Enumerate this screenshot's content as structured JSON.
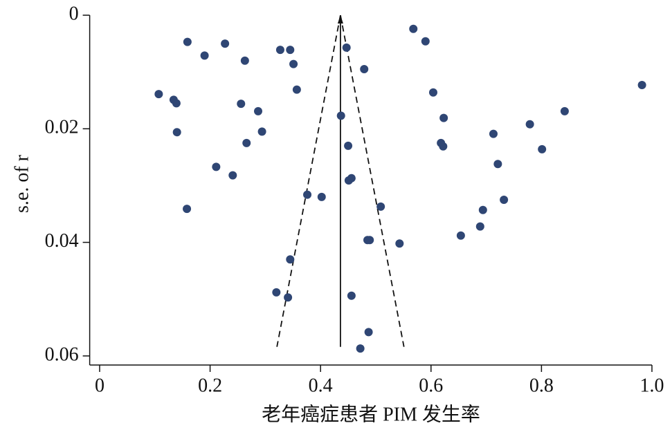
{
  "chart_data": {
    "type": "scatter",
    "xlabel": "老年癌症患者 PIM 发生率",
    "ylabel": "s.e. of r",
    "color": "#2f4674",
    "x": [
      0.159,
      0.19,
      0.227,
      0.263,
      0.327,
      0.345,
      0.351,
      0.357,
      0.447,
      0.479,
      0.568,
      0.59,
      0.604,
      0.623,
      0.107,
      0.134,
      0.139,
      0.14,
      0.256,
      0.287,
      0.294,
      0.266,
      0.211,
      0.241,
      0.158,
      0.437,
      0.45,
      0.456,
      0.451,
      0.376,
      0.402,
      0.509,
      0.485,
      0.489,
      0.543,
      0.345,
      0.32,
      0.341,
      0.456,
      0.487,
      0.472,
      0.618,
      0.622,
      0.654,
      0.689,
      0.694,
      0.713,
      0.721,
      0.732,
      0.779,
      0.801,
      0.842,
      0.982
    ],
    "values": [
      0.0047,
      0.0071,
      0.005,
      0.008,
      0.0061,
      0.0061,
      0.0086,
      0.0131,
      0.0057,
      0.0095,
      0.0024,
      0.0046,
      0.0136,
      0.0181,
      0.0139,
      0.0149,
      0.0155,
      0.0206,
      0.0156,
      0.0169,
      0.0205,
      0.0225,
      0.0267,
      0.0282,
      0.0341,
      0.0177,
      0.023,
      0.0287,
      0.0291,
      0.0316,
      0.032,
      0.0337,
      0.0396,
      0.0396,
      0.0402,
      0.043,
      0.0488,
      0.0497,
      0.0494,
      0.0558,
      0.0587,
      0.0225,
      0.0231,
      0.0388,
      0.0372,
      0.0343,
      0.0209,
      0.0262,
      0.0325,
      0.0192,
      0.0236,
      0.0169,
      0.0123
    ],
    "funnel": {
      "apex": 0.436,
      "bottom_se": 0.0584,
      "bottom_left": 0.321,
      "bottom_right": 0.551
    },
    "xlim": [
      -0.018,
      1.0
    ],
    "xticks": [
      0,
      0.2,
      0.4,
      0.6,
      0.8,
      {
        "value": 1.0,
        "label": "1.0"
      }
    ],
    "ylim": [
      0,
      0.0616
    ],
    "yticks": [
      0,
      0.02,
      0.04,
      0.06
    ],
    "y_inverted": true
  }
}
